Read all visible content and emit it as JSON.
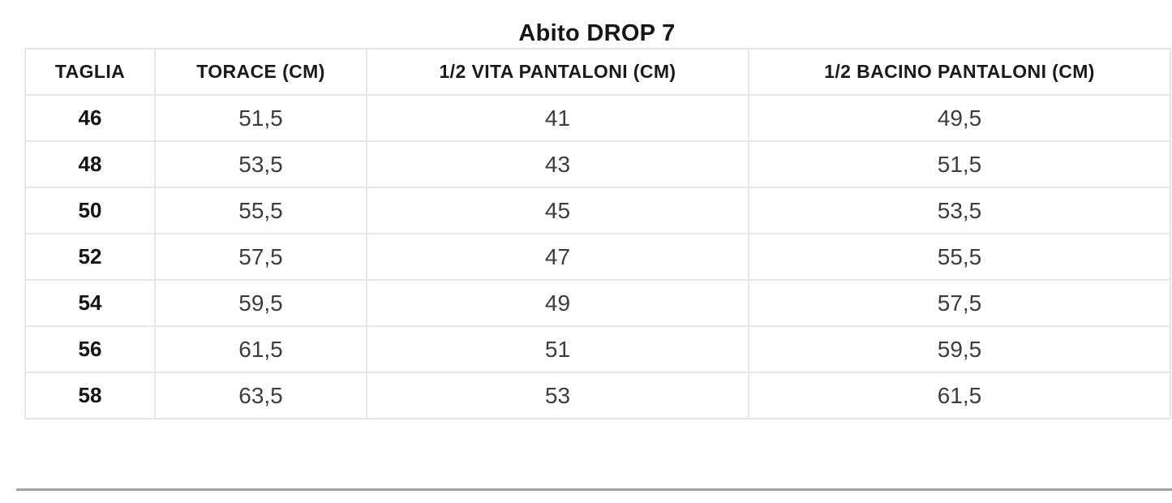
{
  "title": "Abito DROP 7",
  "table": {
    "headers": [
      "TAGLIA",
      "TORACE (CM)",
      "1/2 VITA PANTALONI (CM)",
      "1/2 BACINO PANTALONI (CM)"
    ],
    "rows": [
      [
        "46",
        "51,5",
        "41",
        "49,5"
      ],
      [
        "48",
        "53,5",
        "43",
        "51,5"
      ],
      [
        "50",
        "55,5",
        "45",
        "53,5"
      ],
      [
        "52",
        "57,5",
        "47",
        "55,5"
      ],
      [
        "54",
        "59,5",
        "49",
        "57,5"
      ],
      [
        "56",
        "61,5",
        "51",
        "59,5"
      ],
      [
        "58",
        "63,5",
        "53",
        "61,5"
      ]
    ]
  },
  "colors": {
    "background": "#ffffff",
    "title_text": "#161616",
    "header_text": "#1a1a1a",
    "size_column_text": "#141414",
    "cell_text": "#3d3d3d",
    "grid_border": "#e7e7e7",
    "bottom_divider": "#a2a29f"
  }
}
